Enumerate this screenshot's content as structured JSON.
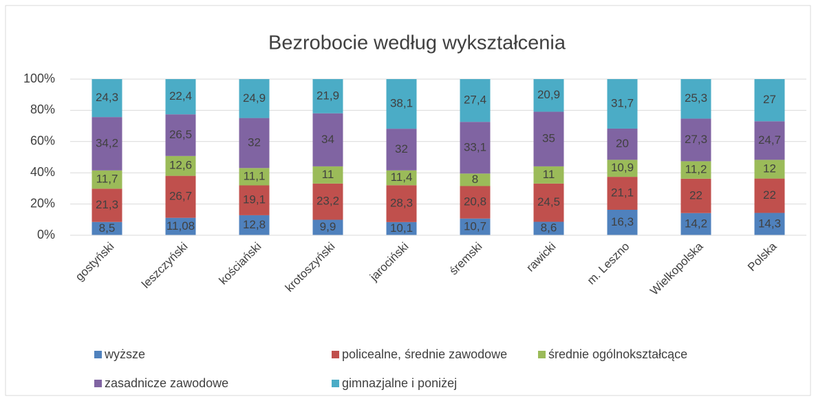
{
  "chart_data": {
    "type": "bar",
    "stacked": "percent",
    "title": "Bezrobocie według wykształcenia",
    "categories": [
      "gostyński",
      "leszczyński",
      "kościański",
      "krotoszyński",
      "jarociński",
      "śremski",
      "rawicki",
      "m. Leszno",
      "Wielkopolska",
      "Polska"
    ],
    "series": [
      {
        "name": "wyższe",
        "color": "#4f81bd",
        "values": [
          8.5,
          11.08,
          12.8,
          9.9,
          10.1,
          10.7,
          8.6,
          16.3,
          14.2,
          14.3
        ],
        "value_labels": [
          "8,5",
          "11,08",
          "12,8",
          "9,9",
          "10,1",
          "10,7",
          "8,6",
          "16,3",
          "14,2",
          "14,3"
        ]
      },
      {
        "name": "policealne, średnie zawodowe",
        "color": "#c0504d",
        "values": [
          21.3,
          26.7,
          19.1,
          23.2,
          28.3,
          20.8,
          24.5,
          21.1,
          22,
          22
        ],
        "value_labels": [
          "21,3",
          "26,7",
          "19,1",
          "23,2",
          "28,3",
          "20,8",
          "24,5",
          "21,1",
          "22",
          "22"
        ]
      },
      {
        "name": "średnie ogólnokształcące",
        "color": "#9bbb59",
        "values": [
          11.7,
          12.6,
          11.1,
          11,
          11.4,
          8,
          11,
          10.9,
          11.2,
          12
        ],
        "value_labels": [
          "11,7",
          "12,6",
          "11,1",
          "11",
          "11,4",
          "8",
          "11",
          "10,9",
          "11,2",
          "12"
        ]
      },
      {
        "name": "zasadnicze zawodowe",
        "color": "#8064a2",
        "values": [
          34.2,
          26.5,
          32,
          34,
          32,
          33.1,
          35,
          20,
          27.3,
          24.7
        ],
        "value_labels": [
          "34,2",
          "26,5",
          "32",
          "34",
          "32",
          "33,1",
          "35",
          "20",
          "27,3",
          "24,7"
        ]
      },
      {
        "name": "gimnazjalne i poniżej",
        "color": "#4bacc6",
        "values": [
          24.3,
          22.4,
          24.9,
          21.9,
          38.1,
          27.4,
          20.9,
          31.7,
          25.3,
          27
        ],
        "value_labels": [
          "24,3",
          "22,4",
          "24,9",
          "21,9",
          "38,1",
          "27,4",
          "20,9",
          "31,7",
          "25,3",
          "27"
        ]
      }
    ],
    "ylim": [
      0,
      100
    ],
    "yticks": [
      {
        "value": 0,
        "label": "0%"
      },
      {
        "value": 20,
        "label": "20%"
      },
      {
        "value": 40,
        "label": "40%"
      },
      {
        "value": 60,
        "label": "60%"
      },
      {
        "value": 80,
        "label": "80%"
      },
      {
        "value": 100,
        "label": "100%"
      }
    ],
    "grid": true,
    "legend": "bottom"
  }
}
